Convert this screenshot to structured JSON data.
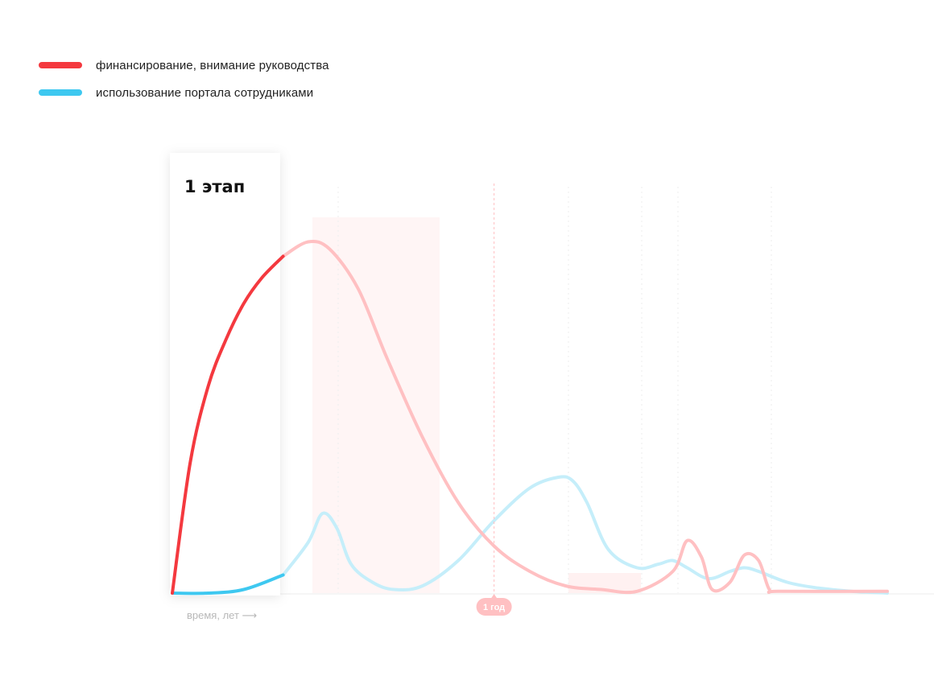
{
  "legend": [
    {
      "label": "финансирование, внимание руководства",
      "color": "#f4393f"
    },
    {
      "label": "использование портала сотрудниками",
      "color": "#3ec8f0"
    }
  ],
  "stage": {
    "title": "1 этап",
    "x_end": 1.55
  },
  "colors": {
    "funding": "#f4393f",
    "funding_faded": "#ffc0c2",
    "usage": "#3ec8f0",
    "usage_faded": "#c5eefa",
    "marker": "#ffc0c2",
    "axis": "#ececec"
  },
  "chart_data": {
    "type": "line",
    "title": "",
    "xlabel": "время, лет ⟶",
    "ylabel": "",
    "xlim": [
      0,
      10
    ],
    "ylim": [
      0,
      100
    ],
    "grid": false,
    "legend_position": "top-left",
    "markers": [
      {
        "x": 4.5,
        "label": "1 год"
      }
    ],
    "series": [
      {
        "name": "финансирование, внимание руководства",
        "x": [
          0,
          0.25,
          0.5,
          0.75,
          1.0,
          1.25,
          1.55,
          1.9,
          2.2,
          2.6,
          3.0,
          3.5,
          4.0,
          4.5,
          5.0,
          5.5,
          6.0,
          6.5,
          7.0,
          7.2,
          7.4,
          7.55,
          7.8,
          8.0,
          8.2,
          8.35,
          8.5,
          10.0
        ],
        "y": [
          0,
          36,
          57,
          70,
          80,
          87,
          93,
          97,
          95,
          84,
          65,
          43,
          25,
          13,
          6,
          2,
          1,
          0.5,
          6,
          14.5,
          10,
          1,
          3,
          10.5,
          9,
          1,
          0.5,
          0.5
        ]
      },
      {
        "name": "использование портала сотрудниками",
        "x": [
          0,
          0.5,
          1.0,
          1.55,
          1.9,
          2.1,
          2.3,
          2.5,
          2.8,
          3.1,
          3.5,
          4.0,
          4.5,
          5.0,
          5.4,
          5.6,
          5.8,
          6.1,
          6.5,
          6.8,
          7.0,
          7.2,
          7.5,
          7.8,
          8.0,
          8.2,
          8.6,
          9.0,
          9.5,
          10.0
        ],
        "y": [
          0,
          0,
          1,
          5,
          14,
          22,
          18,
          8,
          3,
          1,
          2,
          9,
          20,
          29,
          32,
          31,
          25,
          12,
          7,
          8,
          9,
          7,
          4,
          6,
          7,
          6,
          3,
          1.5,
          0.5,
          0
        ]
      }
    ]
  }
}
